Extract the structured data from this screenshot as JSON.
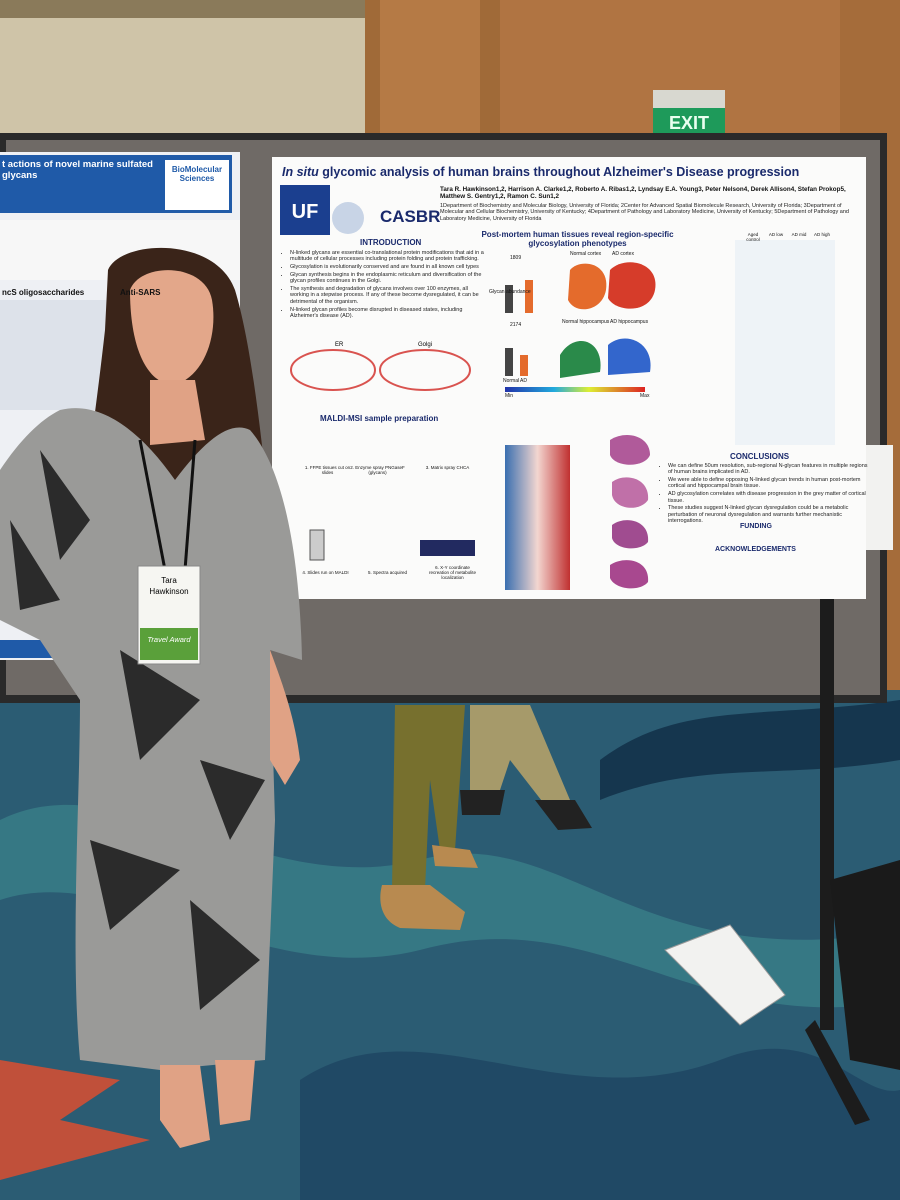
{
  "exit_sign": "EXIT",
  "poster": {
    "title_italic": "In situ",
    "title": "glycomic analysis of human brains throughout Alzheimer's Disease progression",
    "authors": "Tara R. Hawkinson1,2, Harrison A. Clarke1,2, Roberto A. Ribas1,2, Lyndsay E.A. Young3, Peter Nelson4, Derek Allison4, Stefan Prokop5, Matthew S. Gentry1,2, Ramon C. Sun1,2",
    "affiliations": "1Department of Biochemistry and Molecular Biology, University of Florida; 2Center for Advanced Spatial Biomolecule Research, University of Florida; 3Department of Molecular and Cellular Biochemistry, University of Kentucky; 4Department of Pathology and Laboratory Medicine, University of Kentucky; 5Department of Pathology and Laboratory Medicine, University of Florida",
    "logos": [
      "UF",
      "CASBR"
    ],
    "introduction": {
      "heading": "INTRODUCTION",
      "bullets": [
        "N-linked glycans are essential co-translational protein modifications that aid in a multitude of cellular processes including protein folding and protein trafficking.",
        "Glycosylation is evolutionarily conserved and are found in all known cell types",
        "Glycan synthesis begins in the endoplasmic reticulum and diversification of the glycan profiles continues in the Golgi.",
        "The synthesis and degradation of glycans involves over 100 enzymes, all working in a stepwise process. If any of these become dysregulated, it can be detrimental of the organism.",
        "N-linked glycan profiles become disrupted in diseased states, including Alzheimer's disease (AD)."
      ]
    },
    "er_label": "ER",
    "golgi_label": "Golgi",
    "maldi": {
      "heading": "MALDI-MSI sample preparation",
      "steps": [
        "1. FFPE tissues cut on slides",
        "2. Enzyme spray PNGaseF (glycans)",
        "3. Matrix spray CHCA",
        "4. Slides run on MALDI",
        "5. Spectra acquired",
        "6. X-Y coordinate recreation of metabolite localization"
      ]
    },
    "results": {
      "heading": "Post-mortem human tissues reveal region-specific glycosylation phenotypes",
      "labels": [
        "1809",
        "2174",
        "Normal cortex",
        "AD cortex",
        "Normal hippocampus",
        "AD hippocampus",
        "Glycan abundance",
        "Normal",
        "AD",
        "Min",
        "Max"
      ],
      "groups": [
        "Aged control",
        "AD low",
        "AD mid",
        "AD high"
      ]
    },
    "conclusions": {
      "heading": "CONCLUSIONS",
      "bullets": [
        "We can define 50um resolution, sub-regional N-glycan features in multiple regions of human brains implicated in AD.",
        "We were able to define opposing N-linked glycan trends in human post-mortem cortical and hippocampal brain tissue.",
        "AD glycosylation correlates with disease progression in the grey matter of cortical tissue.",
        "These studies suggest N-linked glycan dysregulation could be a metabolic perturbation of neuronal dysregulation and warrants further mechanistic interrogations."
      ]
    },
    "funding": {
      "heading": "FUNDING"
    },
    "acknowledgements": {
      "heading": "ACKNOWLEDGEMENTS"
    }
  },
  "left_poster": {
    "title": "t actions of novel marine sulfated glycans",
    "logo": "BioMolecular Sciences",
    "sub1": "ncS oligosaccharides",
    "sub2": "Anti-SARS"
  },
  "badge": {
    "first": "Tara",
    "last": "Hawkinson",
    "ribbon": "Travel Award"
  }
}
